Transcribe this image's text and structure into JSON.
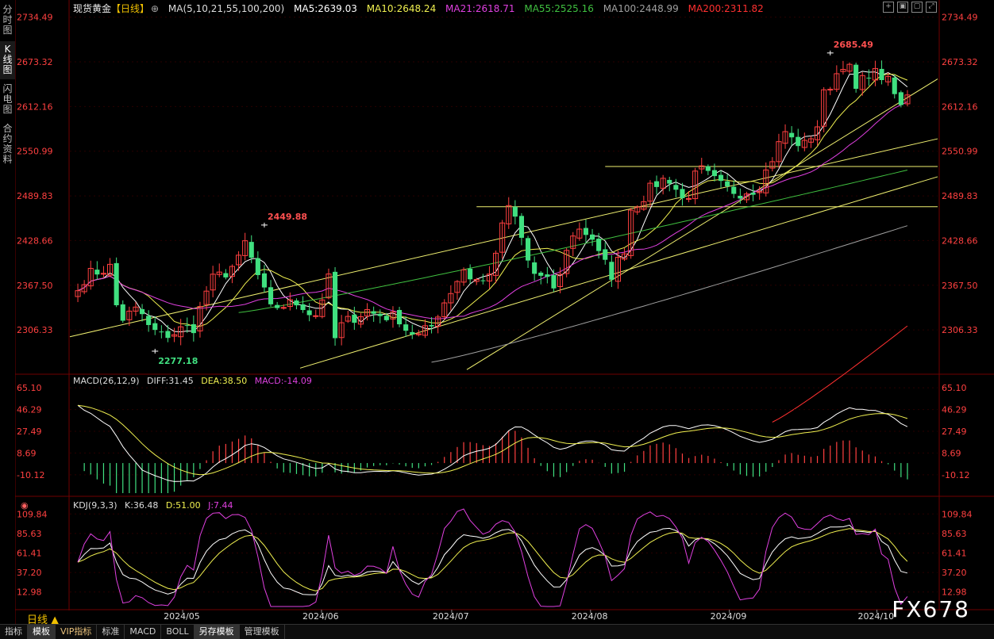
{
  "sidebar": {
    "tabs": [
      {
        "label": "分时图",
        "active": false
      },
      {
        "label": "K线图",
        "active": true
      },
      {
        "label": "闪电图",
        "active": false
      },
      {
        "label": "合约资料",
        "active": false
      }
    ]
  },
  "header": {
    "symbol": "现货黄金",
    "period_tag": "【日线】",
    "ma_label": "MA(5,10,21,55,100,200)",
    "ma5": "MA5:2639.03",
    "ma10": "MA10:2648.24",
    "ma21": "MA21:2618.71",
    "ma55": "MA55:2525.16",
    "ma100": "MA100:2448.99",
    "ma200": "MA200:2311.82"
  },
  "macd_panel": {
    "label": "MACD(26,12,9)",
    "diff": "DIFF:31.45",
    "dea": "DEA:38.50",
    "macd": "MACD:-14.09"
  },
  "kdj_panel": {
    "label": "KDJ(9,3,3)",
    "k": "K:36.48",
    "d": "D:51.00",
    "j": "J:7.44"
  },
  "period_label": "日线 ▲",
  "watermark": "FX678",
  "bottom_tabs": [
    "指标",
    "模板",
    "VIP指标",
    "标准",
    "MACD",
    "BOLL",
    "另存模板",
    "管理模板"
  ],
  "colors": {
    "up": "#ff4040",
    "down": "#40e080",
    "ma5": "#ffffff",
    "ma10": "#f0f050",
    "ma21": "#e040e0",
    "ma55": "#40c040",
    "ma100": "#a0a0a0",
    "ma200": "#ff3030",
    "trendline": "#f0f070"
  },
  "chart_data": [
    {
      "type": "candlestick",
      "title": "现货黄金【日线】",
      "y_ticks": [
        "2734.49",
        "2673.32",
        "2612.16",
        "2550.99",
        "2489.83",
        "2428.66",
        "2367.50",
        "2306.33"
      ],
      "ylim": [
        2250,
        2745
      ],
      "x_ticks": [
        "2024/05",
        "2024/06",
        "2024/07",
        "2024/08",
        "2024/09",
        "2024/10"
      ],
      "annotations": [
        {
          "text": "2449.88",
          "value": 2449.88
        },
        {
          "text": "2277.18",
          "value": 2277.18
        },
        {
          "text": "2685.49",
          "value": 2685.49
        }
      ],
      "anchors": [
        {
          "date": "2024-04-12",
          "close": 2360
        },
        {
          "date": "2024-04-16",
          "close": 2383
        },
        {
          "date": "2024-04-19",
          "close": 2392
        },
        {
          "date": "2024-04-23",
          "close": 2322
        },
        {
          "date": "2024-04-25",
          "close": 2333
        },
        {
          "date": "2024-05-01",
          "close": 2298
        },
        {
          "date": "2024-05-03",
          "close": 2302
        },
        {
          "date": "2024-05-08",
          "close": 2310
        },
        {
          "date": "2024-05-10",
          "close": 2360
        },
        {
          "date": "2024-05-15",
          "close": 2385
        },
        {
          "date": "2024-05-20",
          "close": 2425
        },
        {
          "date": "2024-05-22",
          "close": 2380
        },
        {
          "date": "2024-05-24",
          "close": 2334
        },
        {
          "date": "2024-05-30",
          "close": 2343
        },
        {
          "date": "2024-06-04",
          "close": 2327
        },
        {
          "date": "2024-06-06",
          "close": 2375
        },
        {
          "date": "2024-06-07",
          "close": 2294
        },
        {
          "date": "2024-06-12",
          "close": 2324
        },
        {
          "date": "2024-06-14",
          "close": 2333
        },
        {
          "date": "2024-06-21",
          "close": 2322
        },
        {
          "date": "2024-06-26",
          "close": 2298
        },
        {
          "date": "2024-07-01",
          "close": 2330
        },
        {
          "date": "2024-07-05",
          "close": 2390
        },
        {
          "date": "2024-07-10",
          "close": 2371
        },
        {
          "date": "2024-07-16",
          "close": 2470
        },
        {
          "date": "2024-07-17",
          "close": 2459
        },
        {
          "date": "2024-07-19",
          "close": 2401
        },
        {
          "date": "2024-07-25",
          "close": 2365
        },
        {
          "date": "2024-07-31",
          "close": 2447
        },
        {
          "date": "2024-08-05",
          "close": 2409
        },
        {
          "date": "2024-08-07",
          "close": 2382
        },
        {
          "date": "2024-08-12",
          "close": 2472
        },
        {
          "date": "2024-08-16",
          "close": 2507
        },
        {
          "date": "2024-08-20",
          "close": 2513
        },
        {
          "date": "2024-08-22",
          "close": 2485
        },
        {
          "date": "2024-08-27",
          "close": 2524
        },
        {
          "date": "2024-08-30",
          "close": 2503
        },
        {
          "date": "2024-09-04",
          "close": 2495
        },
        {
          "date": "2024-09-09",
          "close": 2505
        },
        {
          "date": "2024-09-13",
          "close": 2578
        },
        {
          "date": "2024-09-18",
          "close": 2559
        },
        {
          "date": "2024-09-23",
          "close": 2628
        },
        {
          "date": "2024-09-26",
          "close": 2672
        },
        {
          "date": "2024-09-30",
          "close": 2634
        },
        {
          "date": "2024-10-02",
          "close": 2660
        },
        {
          "date": "2024-10-07",
          "close": 2645
        },
        {
          "date": "2024-10-09",
          "close": 2611
        },
        {
          "date": "2024-10-10",
          "close": 2628
        }
      ],
      "ma_endpoints": {
        "MA5": 2639.03,
        "MA10": 2648.24,
        "MA21": 2618.71,
        "MA55": 2525.16,
        "MA100": 2448.99,
        "MA200": 2311.82
      },
      "horizontal_lines": [
        2530,
        2475
      ]
    },
    {
      "type": "macd",
      "y_ticks": [
        "65.10",
        "46.29",
        "27.49",
        "8.69",
        "-10.12"
      ],
      "ylim": [
        -26,
        70
      ],
      "last": {
        "DIFF": 31.45,
        "DEA": 38.5,
        "MACD": -14.09
      }
    },
    {
      "type": "kdj",
      "y_ticks": [
        "109.84",
        "85.63",
        "61.41",
        "37.20",
        "12.98"
      ],
      "ylim": [
        -5,
        118
      ],
      "last": {
        "K": 36.48,
        "D": 51.0,
        "J": 7.44
      }
    }
  ]
}
